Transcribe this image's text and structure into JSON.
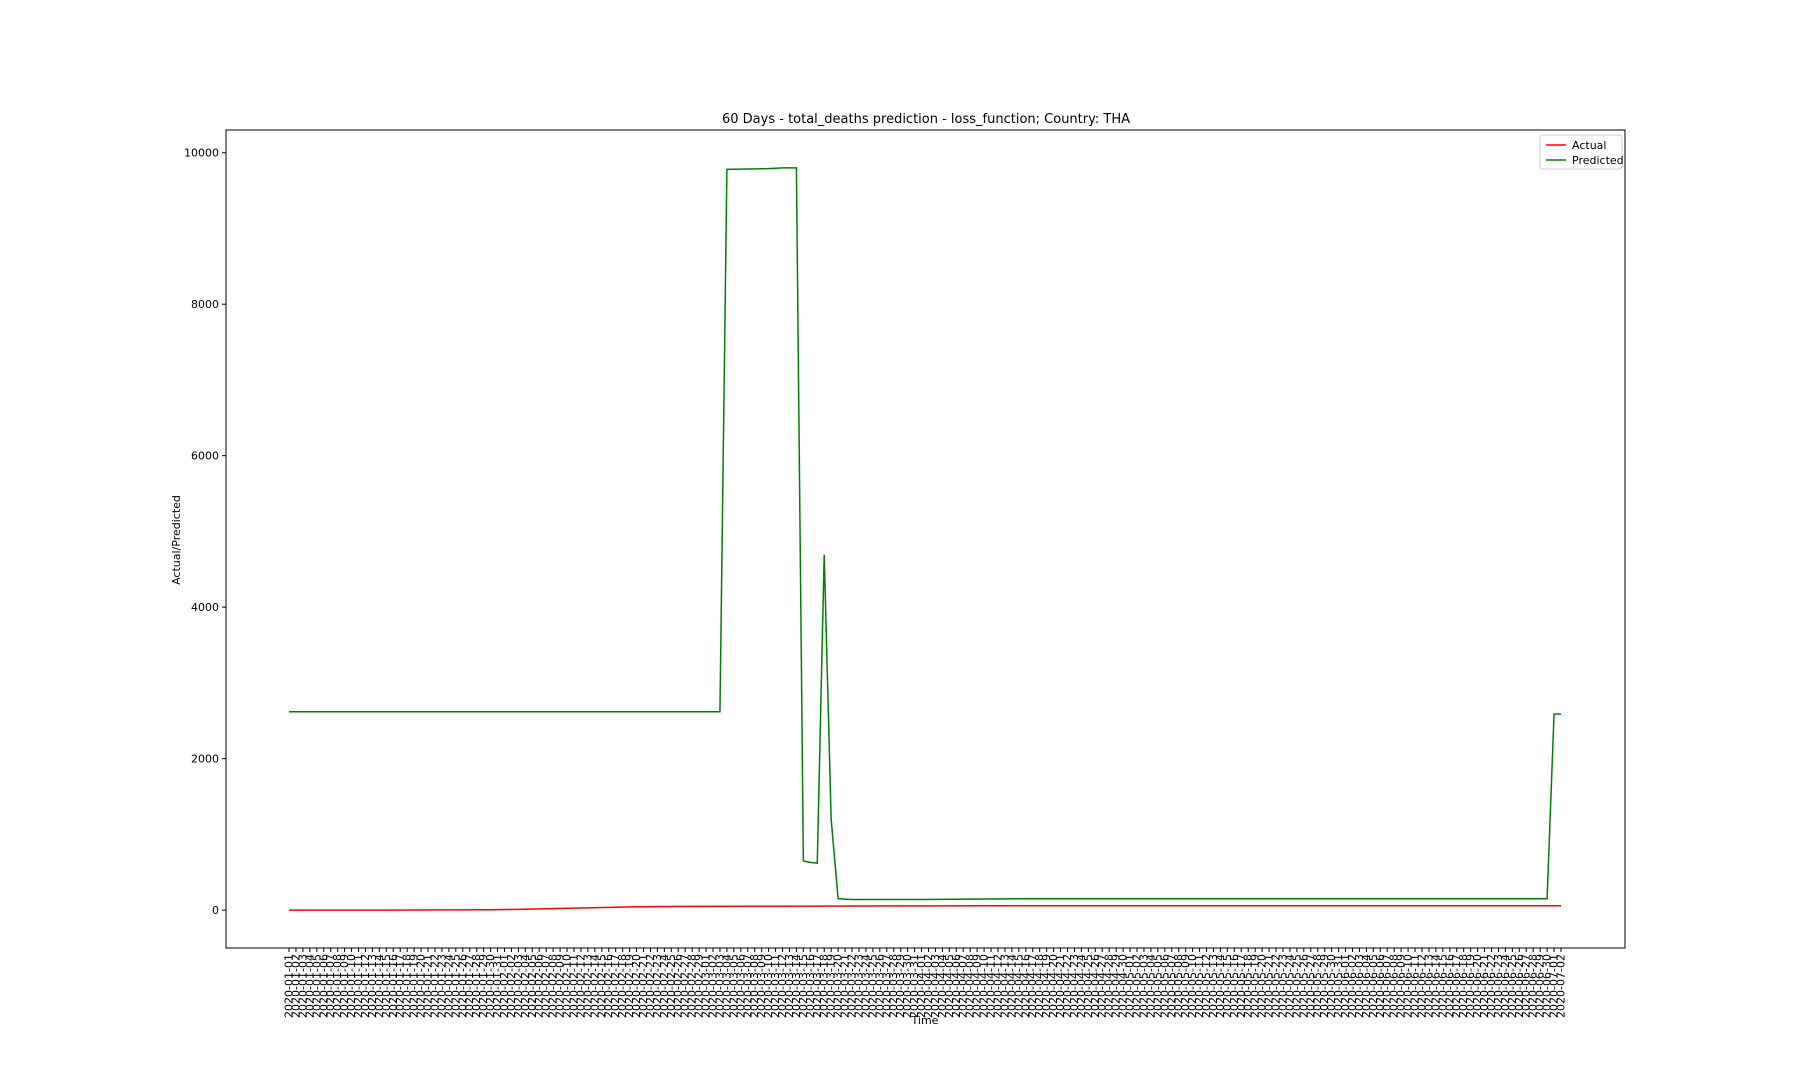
{
  "chart_data": {
    "type": "line",
    "title": "60 Days - total_deaths prediction - loss_function; Country: THA",
    "xlabel": "Time",
    "ylabel": "Actual/Predicted",
    "ylim": [
      -500,
      10300
    ],
    "yticks": [
      0,
      2000,
      4000,
      6000,
      8000,
      10000
    ],
    "x_start": "2020-01-01",
    "x_end": "2020-07-02",
    "x_tick_labels": [
      "2020-01-01",
      "2020-01-02",
      "2020-01-03",
      "2020-01-04",
      "2020-01-05",
      "2020-01-06",
      "2020-01-07",
      "2020-01-08",
      "2020-01-09",
      "2020-01-10",
      "2020-01-11",
      "2020-01-12",
      "2020-01-13",
      "2020-01-14",
      "2020-01-15",
      "2020-01-16",
      "2020-01-17",
      "2020-01-18",
      "2020-01-19",
      "2020-01-20",
      "2020-01-21",
      "2020-01-22",
      "2020-01-23",
      "2020-01-24",
      "2020-01-25",
      "2020-01-26",
      "2020-01-27",
      "2020-01-28",
      "2020-01-29",
      "2020-01-30",
      "2020-01-31",
      "2020-02-01",
      "2020-02-02",
      "2020-02-03",
      "2020-02-04",
      "2020-02-05",
      "2020-02-06",
      "2020-02-07",
      "2020-02-08",
      "2020-02-09",
      "2020-02-10",
      "2020-02-11",
      "2020-02-12",
      "2020-02-13",
      "2020-02-14",
      "2020-02-15",
      "2020-02-16",
      "2020-02-17",
      "2020-02-18",
      "2020-02-19",
      "2020-02-20",
      "2020-02-21",
      "2020-02-22",
      "2020-02-23",
      "2020-02-24",
      "2020-02-25",
      "2020-02-26",
      "2020-02-27",
      "2020-02-28",
      "2020-02-29",
      "2020-03-01",
      "2020-03-02",
      "2020-03-03",
      "2020-03-04",
      "2020-03-05",
      "2020-03-06",
      "2020-03-07",
      "2020-03-08",
      "2020-03-09",
      "2020-03-10",
      "2020-03-11",
      "2020-03-12",
      "2020-03-13",
      "2020-03-14",
      "2020-03-15",
      "2020-03-16",
      "2020-03-17",
      "2020-03-18",
      "2020-03-19",
      "2020-03-20",
      "2020-03-21",
      "2020-03-22",
      "2020-03-23",
      "2020-03-24",
      "2020-03-25",
      "2020-03-26",
      "2020-03-27",
      "2020-03-28",
      "2020-03-29",
      "2020-03-30",
      "2020-03-31",
      "2020-04-01",
      "2020-04-02",
      "2020-04-03",
      "2020-04-04",
      "2020-04-05",
      "2020-04-06",
      "2020-04-07",
      "2020-04-08",
      "2020-04-09",
      "2020-04-10",
      "2020-04-11",
      "2020-04-12",
      "2020-04-13",
      "2020-04-14",
      "2020-04-15",
      "2020-04-16",
      "2020-04-17",
      "2020-04-18",
      "2020-04-19",
      "2020-04-20",
      "2020-04-21",
      "2020-04-22",
      "2020-04-23",
      "2020-04-24",
      "2020-04-25",
      "2020-04-26",
      "2020-04-27",
      "2020-04-28",
      "2020-04-29",
      "2020-04-30",
      "2020-05-01",
      "2020-05-02",
      "2020-05-03",
      "2020-05-04",
      "2020-05-05",
      "2020-05-06",
      "2020-05-07",
      "2020-05-08",
      "2020-05-09",
      "2020-05-10",
      "2020-05-11",
      "2020-05-12",
      "2020-05-13",
      "2020-05-14",
      "2020-05-15",
      "2020-05-16",
      "2020-05-17",
      "2020-05-18",
      "2020-05-19",
      "2020-05-20",
      "2020-05-21",
      "2020-05-22",
      "2020-05-23",
      "2020-05-24",
      "2020-05-25",
      "2020-05-26",
      "2020-05-27",
      "2020-05-28",
      "2020-05-29",
      "2020-05-30",
      "2020-05-31",
      "2020-06-01",
      "2020-06-02",
      "2020-06-03",
      "2020-06-04",
      "2020-06-05",
      "2020-06-06",
      "2020-06-07",
      "2020-06-08",
      "2020-06-09",
      "2020-06-10",
      "2020-06-11",
      "2020-06-12",
      "2020-06-13",
      "2020-06-14",
      "2020-06-15",
      "2020-06-16",
      "2020-06-17",
      "2020-06-18",
      "2020-06-19",
      "2020-06-20",
      "2020-06-21",
      "2020-06-22",
      "2020-06-23",
      "2020-06-24",
      "2020-06-25",
      "2020-06-26",
      "2020-06-27",
      "2020-06-28",
      "2020-06-29",
      "2020-06-30",
      "2020-07-01",
      "2020-07-02"
    ],
    "series": [
      {
        "name": "Actual",
        "color": "#ff0000",
        "x": [
          "2020-01-01",
          "2020-01-15",
          "2020-01-30",
          "2020-02-03",
          "2020-02-10",
          "2020-02-17",
          "2020-02-20",
          "2020-03-01",
          "2020-03-10",
          "2020-03-25",
          "2020-04-10",
          "2020-05-01",
          "2020-06-01",
          "2020-07-02"
        ],
        "y": [
          0,
          0,
          5,
          10,
          25,
          38,
          45,
          50,
          52,
          55,
          57,
          58,
          58,
          58
        ]
      },
      {
        "name": "Predicted",
        "color": "#008000",
        "x": [
          "2020-01-01",
          "2020-03-03",
          "2020-03-04",
          "2020-03-10",
          "2020-03-12",
          "2020-03-14",
          "2020-03-15",
          "2020-03-16",
          "2020-03-17",
          "2020-03-18",
          "2020-03-19",
          "2020-03-20",
          "2020-03-21",
          "2020-03-22",
          "2020-03-23",
          "2020-03-24",
          "2020-03-25",
          "2020-03-26",
          "2020-04-01",
          "2020-04-15",
          "2020-05-01",
          "2020-06-30",
          "2020-07-01",
          "2020-07-02"
        ],
        "y": [
          2620,
          2620,
          9780,
          9790,
          9800,
          9800,
          650,
          630,
          620,
          4690,
          1200,
          150,
          145,
          140,
          140,
          140,
          140,
          140,
          140,
          150,
          150,
          150,
          2590,
          2590
        ]
      }
    ],
    "legend": "top-right",
    "grid": false
  }
}
